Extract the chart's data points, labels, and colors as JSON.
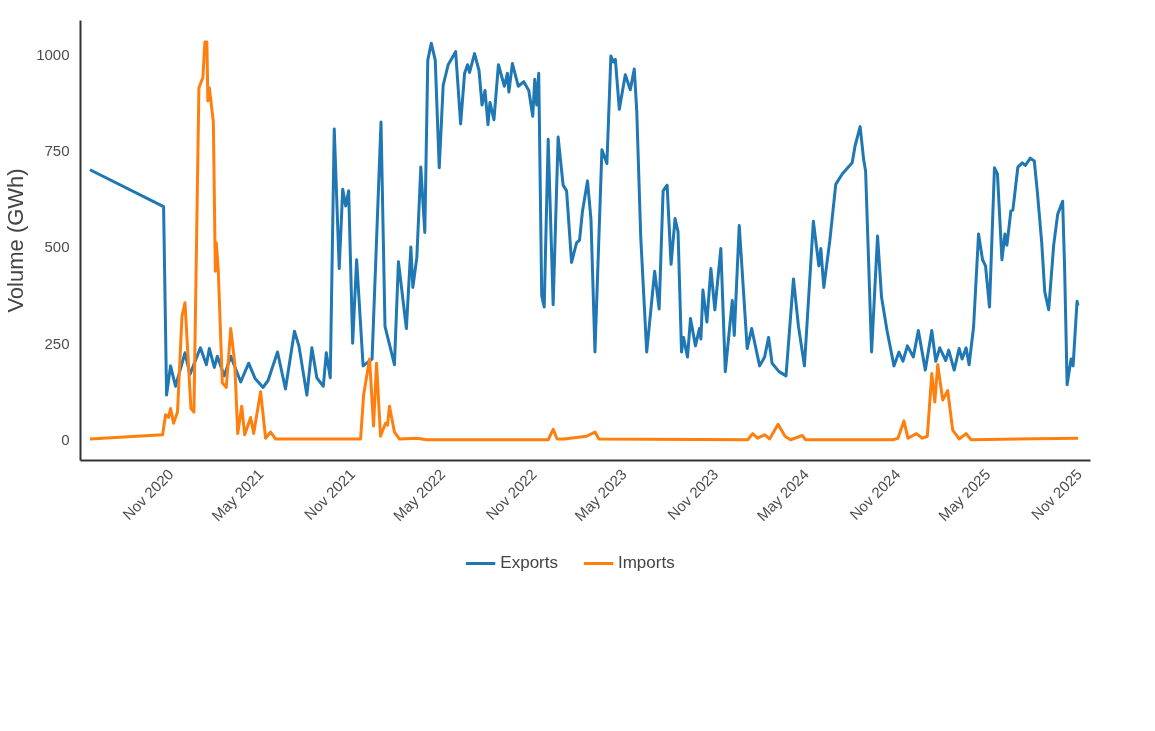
{
  "chart_data": {
    "type": "line",
    "ylabel": "Volume (GWh)",
    "xlim": [
      "2020-05-04",
      "2025-11-24"
    ],
    "ylim": [
      -54,
      1090
    ],
    "xticks": [
      {
        "value": "2020-11-01",
        "label": "Nov 2020"
      },
      {
        "value": "2021-05-01",
        "label": "May 2021"
      },
      {
        "value": "2021-11-01",
        "label": "Nov 2021"
      },
      {
        "value": "2022-05-01",
        "label": "May 2022"
      },
      {
        "value": "2022-11-01",
        "label": "Nov 2022"
      },
      {
        "value": "2023-05-01",
        "label": "May 2023"
      },
      {
        "value": "2023-11-01",
        "label": "Nov 2023"
      },
      {
        "value": "2024-05-01",
        "label": "May 2024"
      },
      {
        "value": "2024-11-01",
        "label": "Nov 2024"
      },
      {
        "value": "2025-05-01",
        "label": "May 2025"
      },
      {
        "value": "2025-11-01",
        "label": "Nov 2025"
      }
    ],
    "yticks": [
      0,
      250,
      500,
      750,
      1000
    ],
    "grid": false,
    "legend": "bottom",
    "line_style": "solid",
    "series": [
      {
        "name": "Exports",
        "color": "#1f77b4",
        "x": [
          "2020-05-23",
          "2020-10-18",
          "2020-10-24",
          "2020-11-01",
          "2020-11-11",
          "2020-11-30",
          "2020-12-10",
          "2020-12-31",
          "2021-01-12",
          "2021-01-18",
          "2021-01-28",
          "2021-02-03",
          "2021-02-17",
          "2021-03-02",
          "2021-03-22",
          "2021-04-07",
          "2021-04-20",
          "2021-05-06",
          "2021-05-16",
          "2021-06-04",
          "2021-06-20",
          "2021-07-08",
          "2021-07-17",
          "2021-08-02",
          "2021-08-12",
          "2021-08-22",
          "2021-09-04",
          "2021-09-10",
          "2021-09-18",
          "2021-09-26",
          "2021-10-06",
          "2021-10-13",
          "2021-10-19",
          "2021-10-25",
          "2021-11-02",
          "2021-11-10",
          "2021-11-23",
          "2021-12-11",
          "2021-12-29",
          "2022-01-06",
          "2022-01-15",
          "2022-01-25",
          "2022-02-02",
          "2022-02-18",
          "2022-02-27",
          "2022-03-03",
          "2022-03-11",
          "2022-03-19",
          "2022-03-27",
          "2022-04-02",
          "2022-04-09",
          "2022-04-17",
          "2022-04-25",
          "2022-05-03",
          "2022-05-13",
          "2022-05-28",
          "2022-06-07",
          "2022-06-15",
          "2022-06-21",
          "2022-06-25",
          "2022-07-05",
          "2022-07-14",
          "2022-07-20",
          "2022-07-26",
          "2022-08-01",
          "2022-08-05",
          "2022-08-13",
          "2022-08-22",
          "2022-09-03",
          "2022-09-09",
          "2022-09-12",
          "2022-09-19",
          "2022-10-01",
          "2022-10-12",
          "2022-10-22",
          "2022-10-30",
          "2022-11-03",
          "2022-11-07",
          "2022-11-11",
          "2022-11-17",
          "2022-11-22",
          "2022-11-30",
          "2022-12-10",
          "2022-12-20",
          "2022-12-30",
          "2023-01-06",
          "2023-01-16",
          "2023-01-26",
          "2023-02-01",
          "2023-02-07",
          "2023-02-17",
          "2023-02-24",
          "2023-03-04",
          "2023-03-18",
          "2023-03-28",
          "2023-04-05",
          "2023-04-10",
          "2023-04-14",
          "2023-04-22",
          "2023-05-04",
          "2023-05-14",
          "2023-05-22",
          "2023-05-27",
          "2023-06-04",
          "2023-06-16",
          "2023-07-02",
          "2023-07-11",
          "2023-07-19",
          "2023-07-27",
          "2023-08-04",
          "2023-08-12",
          "2023-08-18",
          "2023-08-25",
          "2023-08-29",
          "2023-09-06",
          "2023-09-12",
          "2023-09-22",
          "2023-09-30",
          "2023-10-03",
          "2023-10-07",
          "2023-10-15",
          "2023-10-23",
          "2023-10-31",
          "2023-11-12",
          "2023-11-21",
          "2023-12-05",
          "2023-12-09",
          "2023-12-19",
          "2024-01-04",
          "2024-01-13",
          "2024-01-29",
          "2024-02-08",
          "2024-02-16",
          "2024-02-23",
          "2024-03-08",
          "2024-03-22",
          "2024-04-06",
          "2024-04-16",
          "2024-04-28",
          "2024-05-16",
          "2024-05-27",
          "2024-05-31",
          "2024-06-06",
          "2024-06-18",
          "2024-06-30",
          "2024-07-13",
          "2024-08-02",
          "2024-08-08",
          "2024-08-18",
          "2024-08-25",
          "2024-08-29",
          "2024-09-10",
          "2024-09-22",
          "2024-09-30",
          "2024-10-11",
          "2024-10-25",
          "2024-11-04",
          "2024-11-12",
          "2024-11-21",
          "2024-12-03",
          "2024-12-13",
          "2024-12-27",
          "2025-01-09",
          "2025-01-17",
          "2025-01-25",
          "2025-02-06",
          "2025-02-12",
          "2025-02-23",
          "2025-03-05",
          "2025-03-11",
          "2025-03-19",
          "2025-03-25",
          "2025-04-03",
          "2025-04-13",
          "2025-04-21",
          "2025-04-27",
          "2025-05-05",
          "2025-05-15",
          "2025-05-21",
          "2025-05-30",
          "2025-06-05",
          "2025-06-09",
          "2025-06-17",
          "2025-06-21",
          "2025-07-01",
          "2025-07-10",
          "2025-07-16",
          "2025-07-26",
          "2025-08-03",
          "2025-08-09",
          "2025-08-18",
          "2025-08-24",
          "2025-09-01",
          "2025-09-11",
          "2025-09-19",
          "2025-09-29",
          "2025-10-03",
          "2025-10-08",
          "2025-10-16",
          "2025-10-20",
          "2025-10-28",
          "2025-10-30"
        ],
        "values": [
          702,
          606,
          116,
          192,
          139,
          226,
          170,
          239,
          195,
          237,
          188,
          217,
          166,
          217,
          150,
          199,
          159,
          136,
          154,
          228,
          132,
          282,
          244,
          116,
          239,
          161,
          139,
          226,
          161,
          808,
          445,
          651,
          608,
          647,
          251,
          468,
          192,
          210,
          826,
          295,
          248,
          195,
          463,
          289,
          501,
          396,
          474,
          709,
          539,
          987,
          1031,
          987,
          707,
          922,
          975,
          1009,
          821,
          953,
          975,
          955,
          1004,
          960,
          870,
          908,
          819,
          877,
          832,
          975,
          919,
          953,
          904,
          978,
          919,
          931,
          908,
          841,
          937,
          870,
          953,
          374,
          345,
          781,
          351,
          787,
          662,
          647,
          461,
          512,
          519,
          595,
          673,
          573,
          228,
          754,
          718,
          998,
          982,
          989,
          859,
          949,
          910,
          964,
          855,
          528,
          228,
          438,
          340,
          647,
          662,
          456,
          575,
          541,
          228,
          266,
          215,
          315,
          244,
          289,
          262,
          389,
          306,
          445,
          338,
          497,
          177,
          362,
          271,
          557,
          237,
          289,
          192,
          215,
          266,
          199,
          177,
          166,
          418,
          295,
          192,
          568,
          452,
          497,
          396,
          517,
          664,
          691,
          720,
          765,
          814,
          729,
          698,
          228,
          530,
          371,
          284,
          192,
          228,
          204,
          244,
          215,
          284,
          181,
          284,
          204,
          239,
          206,
          233,
          181,
          237,
          210,
          239,
          195,
          293,
          535,
          468,
          452,
          345,
          707,
          691,
          468,
          535,
          506,
          595,
          597,
          709,
          720,
          713,
          732,
          725,
          647,
          512,
          385,
          338,
          506,
          586,
          620,
          445,
          143,
          210,
          192,
          360,
          349
        ]
      },
      {
        "name": "Imports",
        "color": "#ff7f0e",
        "x": [
          "2020-05-23",
          "2020-10-16",
          "2020-10-22",
          "2020-10-28",
          "2020-11-01",
          "2020-11-07",
          "2020-11-15",
          "2020-11-24",
          "2020-11-30",
          "2020-12-12",
          "2020-12-18",
          "2020-12-28",
          "2021-01-05",
          "2021-01-09",
          "2021-01-13",
          "2021-01-15",
          "2021-01-18",
          "2021-01-26",
          "2021-01-30",
          "2021-02-01",
          "2021-02-05",
          "2021-02-13",
          "2021-02-21",
          "2021-03-02",
          "2021-03-10",
          "2021-03-16",
          "2021-03-24",
          "2021-03-30",
          "2021-04-11",
          "2021-04-17",
          "2021-05-01",
          "2021-05-11",
          "2021-05-21",
          "2021-05-31",
          "2021-11-18",
          "2021-11-24",
          "2021-12-06",
          "2021-12-14",
          "2021-12-20",
          "2021-12-28",
          "2022-01-07",
          "2022-01-11",
          "2022-01-15",
          "2022-01-25",
          "2022-02-04",
          "2022-03-11",
          "2022-03-31",
          "2022-11-30",
          "2022-12-10",
          "2022-12-18",
          "2023-01-01",
          "2023-02-15",
          "2023-03-04",
          "2023-03-12",
          "2024-01-05",
          "2024-01-15",
          "2024-01-25",
          "2024-02-08",
          "2024-02-18",
          "2024-03-06",
          "2024-03-20",
          "2024-03-31",
          "2024-04-24",
          "2024-04-30",
          "2024-10-23",
          "2024-11-02",
          "2024-11-14",
          "2024-11-22",
          "2024-12-09",
          "2024-12-21",
          "2024-12-31",
          "2025-01-09",
          "2025-01-15",
          "2025-01-21",
          "2025-01-31",
          "2025-02-10",
          "2025-02-20",
          "2025-03-05",
          "2025-03-19",
          "2025-03-29",
          "2025-10-30"
        ],
        "values": [
          2,
          13,
          65,
          58,
          81,
          43,
          72,
          322,
          356,
          81,
          72,
          915,
          942,
          1034,
          1034,
          881,
          915,
          826,
          438,
          512,
          438,
          148,
          136,
          289,
          199,
          16,
          87,
          13,
          58,
          16,
          125,
          4,
          20,
          2,
          2,
          116,
          210,
          36,
          199,
          9,
          43,
          38,
          87,
          20,
          2,
          4,
          0,
          0,
          27,
          2,
          2,
          9,
          20,
          2,
          0,
          16,
          4,
          13,
          2,
          40,
          9,
          0,
          11,
          0,
          0,
          4,
          49,
          4,
          16,
          4,
          9,
          172,
          98,
          195,
          103,
          128,
          25,
          2,
          16,
          0,
          4
        ]
      }
    ]
  }
}
